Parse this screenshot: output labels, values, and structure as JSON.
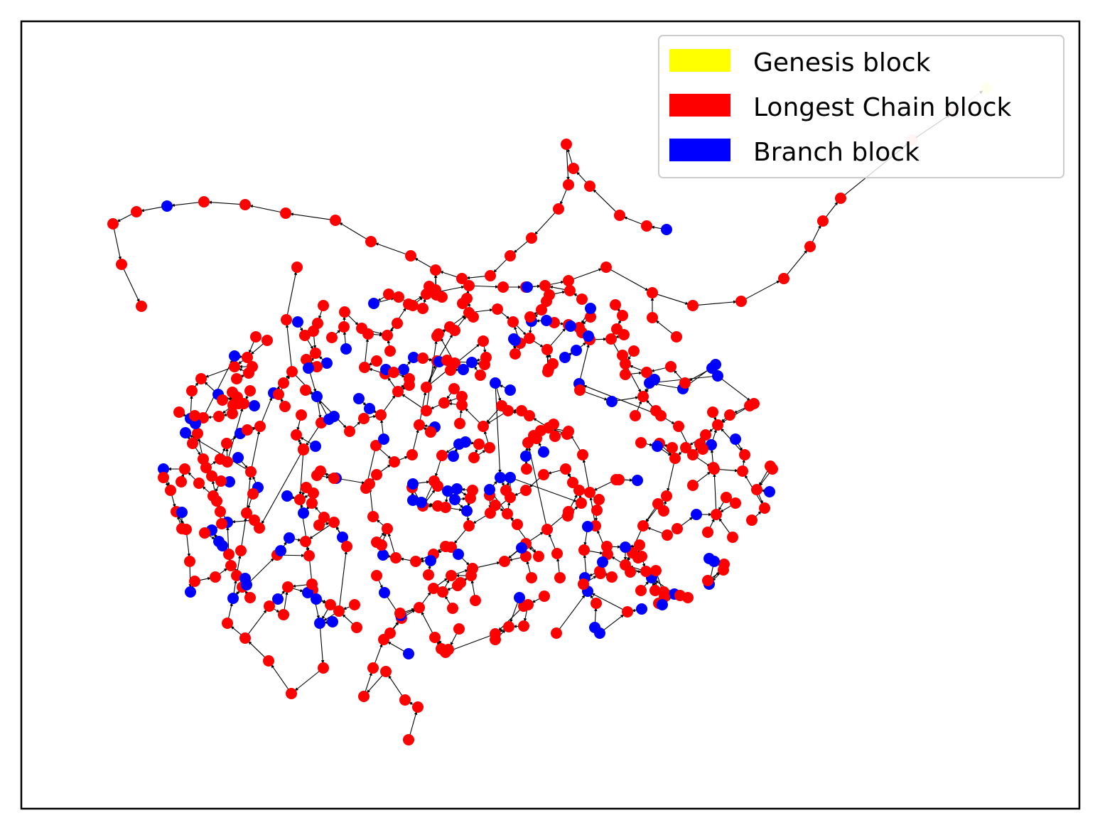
{
  "legend": {
    "items": [
      {
        "label": "Genesis block",
        "color": "#ffff00"
      },
      {
        "label": "Longest Chain block",
        "color": "#ff0000"
      },
      {
        "label": "Branch block",
        "color": "#0000ff"
      }
    ]
  },
  "colors": {
    "genesis": "#ffff00",
    "longest_chain": "#ff0000",
    "branch": "#0000ff",
    "edge": "#000000",
    "frame": "#000000"
  },
  "graph": {
    "description_visible": false,
    "node_kinds": [
      "genesis",
      "longest_chain",
      "branch"
    ],
    "edges_are_directed": true
  }
}
